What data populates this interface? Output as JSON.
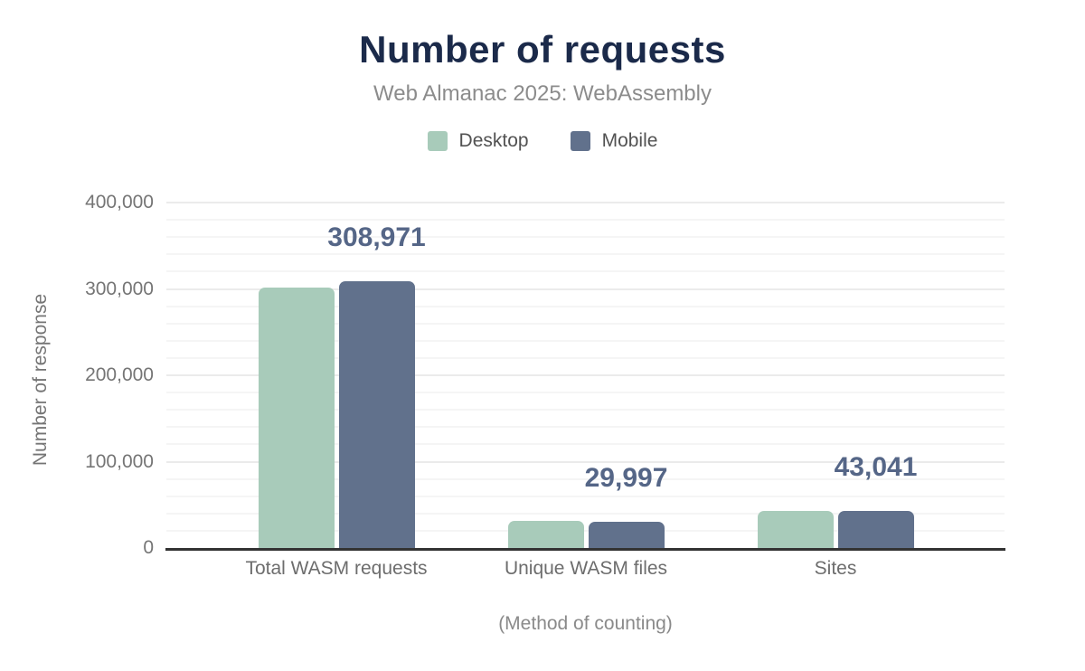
{
  "chart_data": {
    "type": "bar",
    "title": "Number of requests",
    "subtitle": "Web Almanac 2025: WebAssembly",
    "categories": [
      "Total WASM requests",
      "Unique WASM files",
      "Sites"
    ],
    "series": [
      {
        "name": "Desktop",
        "color": "#a8cbba",
        "values": [
          302000,
          31800,
          42600
        ],
        "values_estimated": true
      },
      {
        "name": "Mobile",
        "color": "#61718c",
        "values": [
          308971,
          29997,
          43041
        ],
        "values_estimated": false
      }
    ],
    "data_labels": [
      "308,971",
      "29,997",
      "43,041"
    ],
    "annotated_series": "Mobile",
    "data_label_color": "#556687",
    "xlabel": "(Method of counting)",
    "ylabel": "Number of response",
    "ylim": [
      0,
      400000
    ],
    "ytick_step": 100000,
    "minor_grid_step": 20000,
    "yticks": [
      "0",
      "100,000",
      "200,000",
      "300,000",
      "400,000"
    ],
    "grid": "horizontal",
    "legend_position": "top",
    "title_color": "#1b2a4a",
    "subtitle_color": "#8c8c8c"
  }
}
